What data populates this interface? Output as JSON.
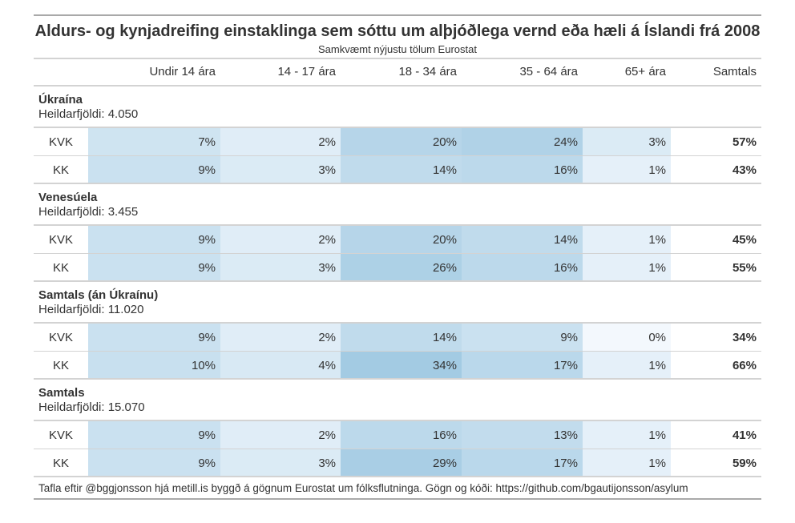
{
  "title": "Aldurs- og kynjadreifing einstaklinga sem sóttu um alþjóðlega vernd eða hæli á Íslandi frá 2008",
  "subtitle": "Samkvæmt nýjustu tölum Eurostat",
  "columns": [
    "",
    "Undir 14 ára",
    "14 - 17 ára",
    "18 - 34 ára",
    "35 - 64 ára",
    "65+ ára",
    "Samtals"
  ],
  "groups": [
    {
      "name": "Úkraína",
      "total_label": "Heildarfjöldi: 4.050",
      "rows": [
        {
          "sex": "KVK",
          "cells": [
            "7%",
            "2%",
            "20%",
            "24%",
            "3%"
          ],
          "values": [
            7,
            2,
            20,
            24,
            3
          ],
          "total": "57%"
        },
        {
          "sex": "KK",
          "cells": [
            "9%",
            "3%",
            "14%",
            "16%",
            "1%"
          ],
          "values": [
            9,
            3,
            14,
            16,
            1
          ],
          "total": "43%"
        }
      ]
    },
    {
      "name": "Venesúela",
      "total_label": "Heildarfjöldi: 3.455",
      "rows": [
        {
          "sex": "KVK",
          "cells": [
            "9%",
            "2%",
            "20%",
            "14%",
            "1%"
          ],
          "values": [
            9,
            2,
            20,
            14,
            1
          ],
          "total": "45%"
        },
        {
          "sex": "KK",
          "cells": [
            "9%",
            "3%",
            "26%",
            "16%",
            "1%"
          ],
          "values": [
            9,
            3,
            26,
            16,
            1
          ],
          "total": "55%"
        }
      ]
    },
    {
      "name": "Samtals (án Úkraínu)",
      "total_label": "Heildarfjöldi: 11.020",
      "rows": [
        {
          "sex": "KVK",
          "cells": [
            "9%",
            "2%",
            "14%",
            "9%",
            "0%"
          ],
          "values": [
            9,
            2,
            14,
            9,
            0
          ],
          "total": "34%"
        },
        {
          "sex": "KK",
          "cells": [
            "10%",
            "4%",
            "34%",
            "17%",
            "1%"
          ],
          "values": [
            10,
            4,
            34,
            17,
            1
          ],
          "total": "66%"
        }
      ]
    },
    {
      "name": "Samtals",
      "total_label": "Heildarfjöldi: 15.070",
      "rows": [
        {
          "sex": "KVK",
          "cells": [
            "9%",
            "2%",
            "16%",
            "13%",
            "1%"
          ],
          "values": [
            9,
            2,
            16,
            13,
            1
          ],
          "total": "41%"
        },
        {
          "sex": "KK",
          "cells": [
            "9%",
            "3%",
            "29%",
            "17%",
            "1%"
          ],
          "values": [
            9,
            3,
            29,
            17,
            1
          ],
          "total": "59%"
        }
      ]
    }
  ],
  "colors": {
    "low": "#f3f8fd",
    "high": "#a3cbe3"
  },
  "footer": "Tafla eftir @bggjonsson hjá metill.is byggð á gögnum Eurostat um fólksflutninga. Gögn og kóði: https://github.com/bgautijonsson/asylum",
  "chart_data": {
    "type": "table",
    "title": "Aldurs- og kynjadreifing einstaklinga sem sóttu um alþjóðlega vernd eða hæli á Íslandi frá 2008",
    "subtitle": "Samkvæmt nýjustu tölum Eurostat",
    "categories": [
      "Undir 14 ára",
      "14 - 17 ára",
      "18 - 34 ára",
      "35 - 64 ára",
      "65+ ára",
      "Samtals"
    ],
    "series": [
      {
        "group": "Úkraína",
        "sex": "KVK",
        "values": [
          7,
          2,
          20,
          24,
          3,
          57
        ]
      },
      {
        "group": "Úkraína",
        "sex": "KK",
        "values": [
          9,
          3,
          14,
          16,
          1,
          43
        ]
      },
      {
        "group": "Venesúela",
        "sex": "KVK",
        "values": [
          9,
          2,
          20,
          14,
          1,
          45
        ]
      },
      {
        "group": "Venesúela",
        "sex": "KK",
        "values": [
          9,
          3,
          26,
          16,
          1,
          55
        ]
      },
      {
        "group": "Samtals (án Úkraínu)",
        "sex": "KVK",
        "values": [
          9,
          2,
          14,
          9,
          0,
          34
        ]
      },
      {
        "group": "Samtals (án Úkraínu)",
        "sex": "KK",
        "values": [
          10,
          4,
          34,
          17,
          1,
          66
        ]
      },
      {
        "group": "Samtals",
        "sex": "KVK",
        "values": [
          9,
          2,
          16,
          13,
          1,
          41
        ]
      },
      {
        "group": "Samtals",
        "sex": "KK",
        "values": [
          9,
          3,
          29,
          17,
          1,
          59
        ]
      }
    ]
  }
}
